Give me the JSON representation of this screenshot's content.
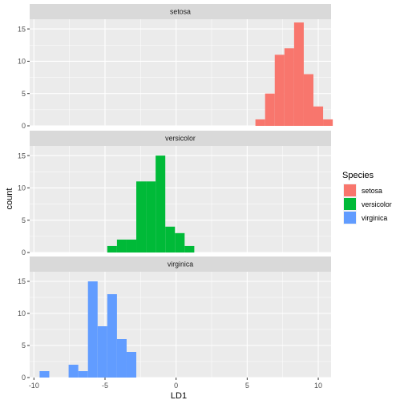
{
  "chart_data": {
    "type": "bar",
    "subtype": "faceted histogram",
    "xlabel": "LD1",
    "ylabel": "count",
    "xlim": [
      -10.3,
      10.9
    ],
    "ylim": [
      0,
      16.5
    ],
    "x_ticks": [
      -10,
      -5,
      0,
      5,
      10
    ],
    "x_tick_labels": [
      "-10",
      "-5",
      "0",
      "5",
      "10"
    ],
    "y_ticks": [
      0,
      5,
      10,
      15
    ],
    "y_tick_labels": [
      "0",
      "5",
      "10",
      "15"
    ],
    "bin_width": 0.68,
    "grid": true,
    "legend": {
      "title": "Species",
      "position": "right",
      "entries": [
        "setosa",
        "versicolor",
        "virginica"
      ]
    },
    "facets": [
      {
        "name": "setosa",
        "color": "#F8766D",
        "bins": [
          {
            "x0": 5.58,
            "count": 1
          },
          {
            "x0": 6.26,
            "count": 5
          },
          {
            "x0": 6.94,
            "count": 11
          },
          {
            "x0": 7.62,
            "count": 12
          },
          {
            "x0": 8.3,
            "count": 16
          },
          {
            "x0": 8.98,
            "count": 8
          },
          {
            "x0": 9.66,
            "count": 3
          },
          {
            "x0": 10.34,
            "count": 1
          }
        ]
      },
      {
        "name": "versicolor",
        "color": "#00BA38",
        "bins": [
          {
            "x0": -4.84,
            "count": 1
          },
          {
            "x0": -4.16,
            "count": 2
          },
          {
            "x0": -3.48,
            "count": 2
          },
          {
            "x0": -2.8,
            "count": 11
          },
          {
            "x0": -2.12,
            "count": 11
          },
          {
            "x0": -1.44,
            "count": 15
          },
          {
            "x0": -0.76,
            "count": 4
          },
          {
            "x0": -0.08,
            "count": 3
          },
          {
            "x0": 0.6,
            "count": 1
          }
        ]
      },
      {
        "name": "virginica",
        "color": "#619CFF",
        "bins": [
          {
            "x0": -9.6,
            "count": 1
          },
          {
            "x0": -8.92,
            "count": 0
          },
          {
            "x0": -8.24,
            "count": 0
          },
          {
            "x0": -7.56,
            "count": 2
          },
          {
            "x0": -6.88,
            "count": 1
          },
          {
            "x0": -6.2,
            "count": 15
          },
          {
            "x0": -5.52,
            "count": 8
          },
          {
            "x0": -4.84,
            "count": 13
          },
          {
            "x0": -4.16,
            "count": 6
          },
          {
            "x0": -3.48,
            "count": 4
          }
        ]
      }
    ]
  }
}
